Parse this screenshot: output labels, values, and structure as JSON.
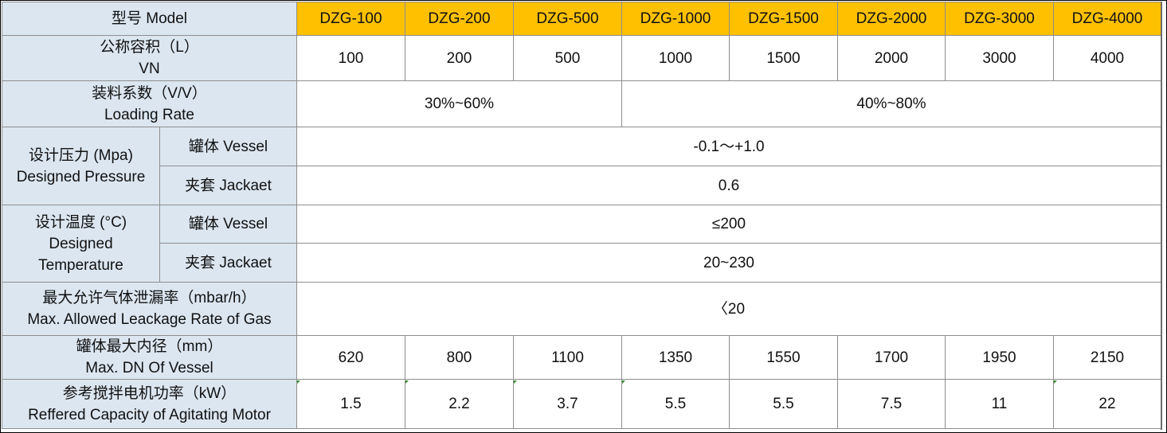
{
  "header": {
    "label": "型号 Model",
    "models": [
      "DZG-100",
      "DZG-200",
      "DZG-500",
      "DZG-1000",
      "DZG-1500",
      "DZG-2000",
      "DZG-3000",
      "DZG-4000"
    ]
  },
  "volume": {
    "label_cn": "公称容积（L）",
    "label_en": "VN",
    "values": [
      "100",
      "200",
      "500",
      "1000",
      "1500",
      "2000",
      "3000",
      "4000"
    ]
  },
  "loading": {
    "label_cn": "装料系数（V/V）",
    "label_en": "Loading Rate",
    "value_a": "30%~60%",
    "value_b": "40%~80%"
  },
  "pressure": {
    "label_1": "设计压力 (Mpa)",
    "label_2": "Designed Pressure",
    "vessel_label": "罐体 Vessel",
    "vessel_value": "-0.1～+1.0",
    "jacket_label": "夹套 Jackaet",
    "jacket_value": "0.6"
  },
  "temperature": {
    "label_1": "设计温度 (°C)",
    "label_2": "Designed",
    "label_3": "Temperature",
    "vessel_label": "罐体 Vessel",
    "vessel_value": "≤200",
    "jacket_label": "夹套 Jackaet",
    "jacket_value": "20~230"
  },
  "leakage": {
    "label_cn": "最大允许气体泄漏率（mbar/h）",
    "label_en": "Max. Allowed Leackage Rate of Gas",
    "value": "〈20"
  },
  "diameter": {
    "label_cn": "罐体最大内径（mm）",
    "label_en": "Max. DN Of Vessel",
    "values": [
      "620",
      "800",
      "1100",
      "1350",
      "1550",
      "1700",
      "1950",
      "2150"
    ]
  },
  "motor": {
    "label_cn": "参考搅拌电机功率（kW）",
    "label_en": "Reffered Capacity of Agitating Motor",
    "values": [
      "1.5",
      "2.2",
      "3.7",
      "5.5",
      "5.5",
      "7.5",
      "11",
      "22"
    ]
  },
  "colors": {
    "header_bg": "#dce6f1",
    "model_bg": "#ffc000",
    "border": "#8e8e8e"
  }
}
